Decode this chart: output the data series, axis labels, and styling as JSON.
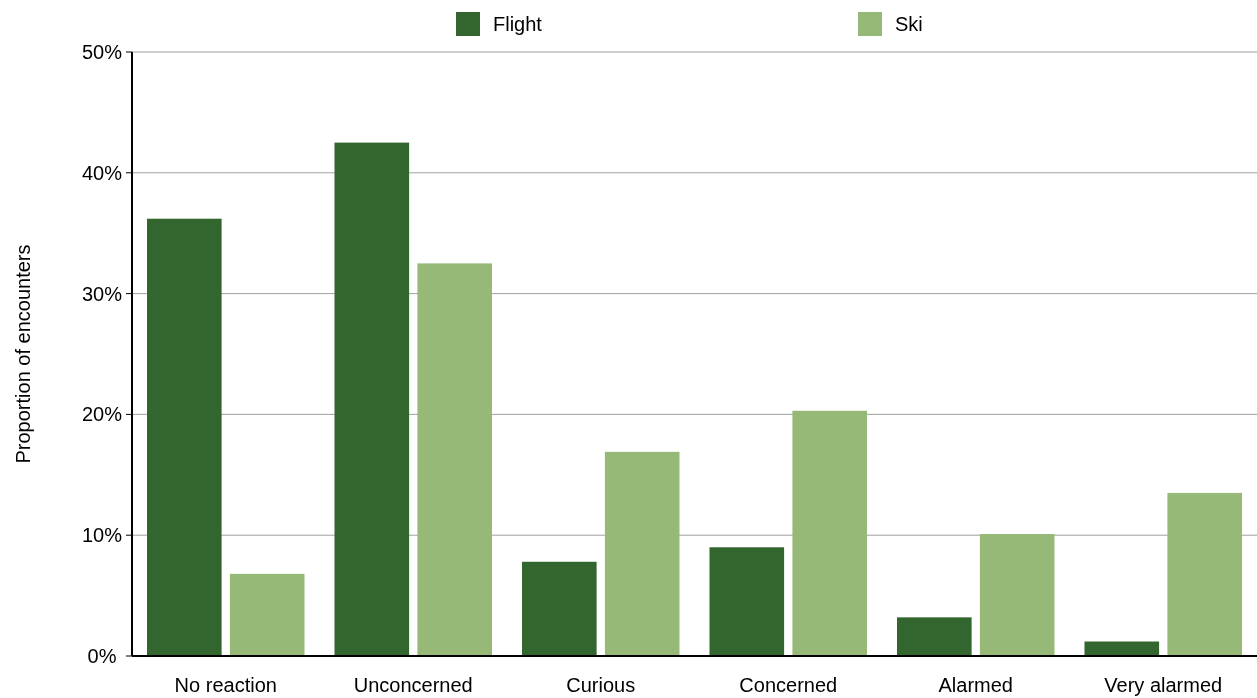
{
  "chart_data": {
    "type": "bar",
    "ylabel": "Proportion of encounters",
    "categories": [
      "No reaction",
      "Unconcerned",
      "Curious",
      "Concerned",
      "Alarmed",
      "Very alarmed"
    ],
    "series": [
      {
        "name": "Flight",
        "color": "#33652e",
        "values": [
          36.2,
          42.5,
          7.8,
          9.0,
          3.2,
          1.2
        ]
      },
      {
        "name": "Ski",
        "color": "#97b978",
        "values": [
          6.8,
          32.5,
          16.9,
          20.3,
          10.1,
          13.5
        ]
      }
    ],
    "ylim": [
      0,
      50
    ],
    "yticks": [
      {
        "value": 0,
        "label": "0%"
      },
      {
        "value": 10,
        "label": "10%"
      },
      {
        "value": 20,
        "label": "20%"
      },
      {
        "value": 30,
        "label": "30%"
      },
      {
        "value": 40,
        "label": "40%"
      },
      {
        "value": 50,
        "label": "50%"
      }
    ],
    "grid": "y",
    "legend": "top"
  }
}
